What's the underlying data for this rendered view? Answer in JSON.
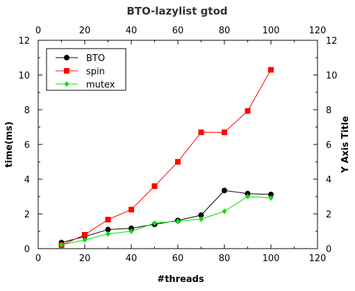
{
  "chart_data": {
    "type": "line",
    "title": "BTO-lazylist gtod",
    "xlabel": "#threads",
    "ylabel": "time(ms)",
    "ylabel_right": "Y Axis Title",
    "xlim": [
      0,
      120
    ],
    "ylim": [
      0,
      12
    ],
    "x_ticks": [
      0,
      20,
      40,
      60,
      80,
      100,
      120
    ],
    "y_ticks": [
      0,
      2,
      4,
      6,
      8,
      10,
      12
    ],
    "legend_position": "top-left",
    "grid": false,
    "x": [
      10,
      20,
      30,
      40,
      50,
      60,
      70,
      80,
      90,
      100
    ],
    "series": [
      {
        "name": "BTO",
        "color": "#000000",
        "marker": "circle",
        "values": [
          0.35,
          0.7,
          1.1,
          1.17,
          1.4,
          1.62,
          1.93,
          3.35,
          3.17,
          3.12
        ]
      },
      {
        "name": "spin",
        "color": "#ff0000",
        "marker": "square",
        "values": [
          0.2,
          0.8,
          1.67,
          2.25,
          3.6,
          5.0,
          6.7,
          6.7,
          7.93,
          10.3
        ]
      },
      {
        "name": "mutex",
        "color": "#00e000",
        "marker": "diamond",
        "values": [
          0.22,
          0.5,
          0.85,
          1.0,
          1.47,
          1.58,
          1.7,
          2.15,
          3.0,
          2.92
        ]
      }
    ]
  }
}
